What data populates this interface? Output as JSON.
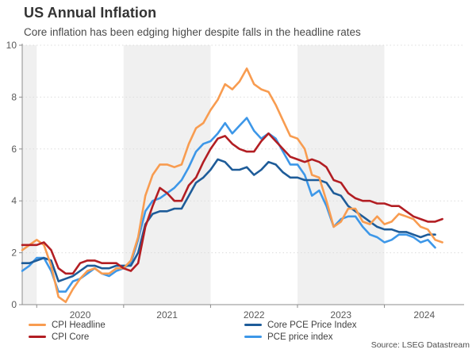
{
  "source": "Source: LSEG Datastream",
  "chart_data": {
    "type": "line",
    "title": "US Annual Inflation",
    "subtitle": "Core inflation has been edging higher despite falls in the headline rates",
    "frequency": "monthly",
    "x_start_month": "2019-11",
    "x_domain_end_month": "2024-12",
    "months_in_domain": 62,
    "x_tick_labels": [
      "2020",
      "2021",
      "2022",
      "2023",
      "2024"
    ],
    "x_tick_month_indices": [
      2,
      14,
      26,
      38,
      50
    ],
    "ylim": [
      0,
      10
    ],
    "y_ticks": [
      0,
      2,
      4,
      6,
      8,
      10
    ],
    "grid": "dotted-horizontal",
    "legend_position": "bottom",
    "band_color": "#f0f0f0",
    "grid_color": "#dcdcdc",
    "axis_color": "#8c8c8c",
    "shaded_year_bands": [
      [
        0,
        2
      ],
      [
        14,
        26
      ],
      [
        38,
        50
      ]
    ],
    "draw_order": [
      3,
      2,
      0,
      1
    ],
    "series": [
      {
        "name": "CPI Headline",
        "color": "#F89C50",
        "end_month": "2024-09",
        "values": [
          2.1,
          2.3,
          2.5,
          2.3,
          1.5,
          0.3,
          0.1,
          0.6,
          1.0,
          1.3,
          1.4,
          1.2,
          1.2,
          1.4,
          1.4,
          1.7,
          2.6,
          4.2,
          5.0,
          5.4,
          5.4,
          5.3,
          5.4,
          6.2,
          6.8,
          7.0,
          7.5,
          7.9,
          8.5,
          8.3,
          8.6,
          9.1,
          8.5,
          8.3,
          8.2,
          7.7,
          7.1,
          6.5,
          6.4,
          6.0,
          5.0,
          4.9,
          4.0,
          3.0,
          3.2,
          3.7,
          3.7,
          3.2,
          3.1,
          3.4,
          3.1,
          3.2,
          3.5,
          3.4,
          3.3,
          3.0,
          2.9,
          2.5,
          2.4
        ]
      },
      {
        "name": "CPI Core",
        "color": "#B21E23",
        "end_month": "2024-09",
        "values": [
          2.3,
          2.3,
          2.3,
          2.4,
          2.1,
          1.4,
          1.2,
          1.2,
          1.6,
          1.7,
          1.7,
          1.6,
          1.6,
          1.6,
          1.4,
          1.3,
          1.6,
          3.0,
          3.8,
          4.5,
          4.3,
          4.0,
          4.0,
          4.6,
          4.9,
          5.5,
          6.0,
          6.4,
          6.5,
          6.2,
          6.0,
          5.9,
          5.9,
          6.3,
          6.6,
          6.3,
          6.0,
          5.7,
          5.6,
          5.5,
          5.6,
          5.5,
          5.3,
          4.8,
          4.7,
          4.3,
          4.1,
          4.0,
          4.0,
          3.9,
          3.9,
          3.8,
          3.8,
          3.6,
          3.4,
          3.3,
          3.2,
          3.2,
          3.3
        ]
      },
      {
        "name": "Core PCE Price Index",
        "color": "#1E5C99",
        "end_month": "2024-08",
        "values": [
          1.6,
          1.6,
          1.7,
          1.8,
          1.7,
          0.9,
          1.0,
          1.1,
          1.3,
          1.5,
          1.5,
          1.4,
          1.4,
          1.5,
          1.5,
          1.5,
          2.0,
          3.1,
          3.5,
          3.6,
          3.6,
          3.7,
          3.7,
          4.2,
          4.7,
          4.9,
          5.2,
          5.6,
          5.5,
          5.2,
          5.2,
          5.3,
          5.0,
          5.2,
          5.5,
          5.4,
          5.1,
          4.9,
          4.9,
          4.8,
          4.8,
          4.8,
          4.7,
          4.3,
          4.2,
          3.8,
          3.6,
          3.4,
          3.2,
          3.0,
          2.9,
          2.9,
          2.8,
          2.8,
          2.7,
          2.6,
          2.7,
          2.7
        ]
      },
      {
        "name": "PCE price index",
        "color": "#3D97E8",
        "end_month": "2024-08",
        "values": [
          1.3,
          1.5,
          1.8,
          1.8,
          1.3,
          0.5,
          0.5,
          0.9,
          1.0,
          1.2,
          1.4,
          1.2,
          1.1,
          1.3,
          1.4,
          1.6,
          2.5,
          3.6,
          4.0,
          4.1,
          4.3,
          4.5,
          4.8,
          5.3,
          5.9,
          6.2,
          6.3,
          6.6,
          7.0,
          6.6,
          6.9,
          7.2,
          6.7,
          6.4,
          6.6,
          6.4,
          5.9,
          5.4,
          5.4,
          5.0,
          4.2,
          4.4,
          3.8,
          3.0,
          3.3,
          3.4,
          3.4,
          3.0,
          2.7,
          2.6,
          2.4,
          2.5,
          2.7,
          2.7,
          2.6,
          2.4,
          2.5,
          2.2
        ]
      }
    ]
  }
}
